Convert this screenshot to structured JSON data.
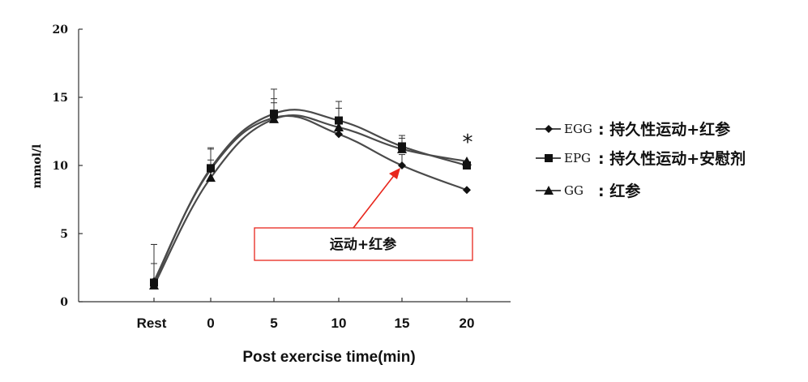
{
  "chart_data": {
    "type": "line",
    "title": "",
    "xlabel": "Post exercise time(min)",
    "ylabel": "mmol/l",
    "ylim": [
      0,
      20
    ],
    "yticks": [
      "0",
      "5",
      "10",
      "15",
      "20"
    ],
    "categories": [
      "Rest",
      "0",
      "5",
      "10",
      "15",
      "20"
    ],
    "series": [
      {
        "name": "EGG",
        "marker": "diamond",
        "values": [
          1.5,
          9.7,
          13.5,
          12.3,
          10.0,
          8.2
        ],
        "errors": [
          2.7,
          1.5,
          1.4,
          1.2,
          0.8,
          0
        ]
      },
      {
        "name": "EPG",
        "marker": "square",
        "values": [
          1.4,
          9.8,
          13.8,
          13.3,
          11.4,
          10.0
        ],
        "errors": [
          2.8,
          1.5,
          1.8,
          1.4,
          0.8,
          0
        ]
      },
      {
        "name": "GG",
        "marker": "triangle",
        "values": [
          1.2,
          9.1,
          13.4,
          12.8,
          11.2,
          10.3
        ],
        "errors": [
          1.6,
          1.3,
          1.2,
          1.4,
          0.8,
          0
        ]
      }
    ],
    "legend": [
      {
        "code": "EGG",
        "desc": ": 持久性运动+红参"
      },
      {
        "code": "EPG",
        "desc": ": 持久性运动+安慰剂"
      },
      {
        "code": "GG",
        "desc": ": 红参"
      }
    ],
    "legend_position": "right",
    "annotation": "运动+红参",
    "significance_mark": "*",
    "grid": false,
    "colors": {
      "line": "#4a4a4a",
      "marker": "#111111",
      "annotation_box": "#e8261c",
      "annotation_arrow": "#e8261c"
    }
  }
}
